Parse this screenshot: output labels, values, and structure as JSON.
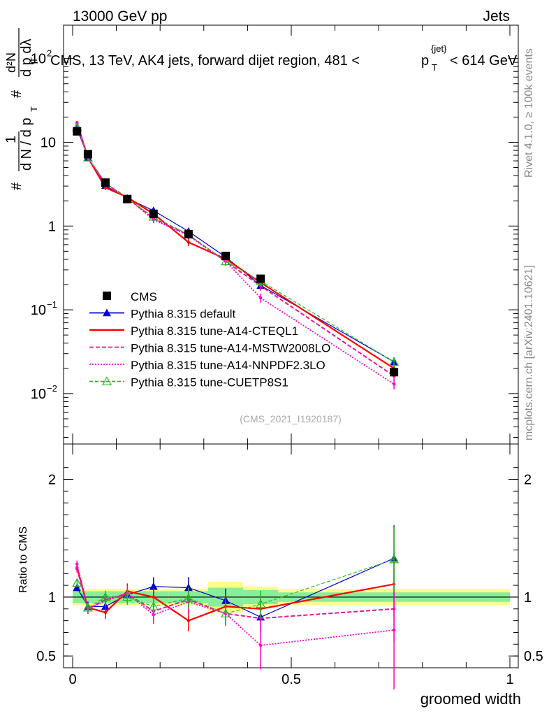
{
  "header": {
    "left": "13000 GeV pp",
    "right": "Jets",
    "title_main": "CMS, 13 TeV, AK4 jets, forward dijet region, 481 <",
    "title_pt_p": "p",
    "title_pt_sup": "{jet}",
    "title_pt_sub": "T",
    "title_end": "< 614 GeV"
  },
  "side_labels": {
    "rivet": "Rivet 4.1.0, ≥ 100k events",
    "mcplots": "mcplots.cern.ch [arXiv:2401.10621]"
  },
  "watermark": "(CMS_2021_I1920187)",
  "main_ylabel": {
    "hash1": "#",
    "one": "1",
    "dN_over_dp": "d N / d p",
    "T1": "T",
    "hash2": "#",
    "d2N": "d²N",
    "dp_dl": "d p  dλ",
    "T2": "T"
  },
  "main_yticks": [
    {
      "value": 100,
      "base": "10",
      "exp": "2"
    },
    {
      "value": 10,
      "base": "10",
      "exp": ""
    },
    {
      "value": 1,
      "base": "1",
      "exp": ""
    },
    {
      "value": 0.1,
      "base": "10",
      "exp": "−1"
    },
    {
      "value": 0.01,
      "base": "10",
      "exp": "−2"
    }
  ],
  "ratio_yticks": [
    {
      "value": 2,
      "label": "2"
    },
    {
      "value": 1,
      "label": "1"
    },
    {
      "value": 0.5,
      "label": "0.5"
    }
  ],
  "ratio_ylabel": "Ratio to CMS",
  "xticks": [
    {
      "value": 0,
      "label": "0"
    },
    {
      "value": 0.5,
      "label": "0.5"
    },
    {
      "value": 1,
      "label": "1"
    }
  ],
  "xlabel": "groomed width",
  "legend": [
    {
      "name": "CMS",
      "color": "#000000",
      "marker": "square",
      "dash": ""
    },
    {
      "name": "Pythia 8.315 default",
      "color": "#0000cc",
      "marker": "triangle",
      "dash": ""
    },
    {
      "name": "Pythia 8.315 tune-A14-CTEQL1",
      "color": "#ff0000",
      "marker": "none",
      "dash": ""
    },
    {
      "name": "Pythia 8.315 tune-A14-MSTW2008LO",
      "color": "#ee1493",
      "marker": "none",
      "dash": "6,3"
    },
    {
      "name": "Pythia 8.315 tune-A14-NNPDF2.3LO",
      "color": "#ff00cc",
      "marker": "none",
      "dash": "2,2"
    },
    {
      "name": "Pythia 8.315 tune-CUETP8S1",
      "color": "#22bb22",
      "marker": "open-triangle",
      "dash": "5,3"
    }
  ],
  "chart_data": {
    "type": "line",
    "title": "CMS, 13 TeV, AK4 jets, forward dijet region, 481 < p_T^{jet} < 614 GeV",
    "xlabel": "groomed width",
    "ylabel": "1/dN/dp_T d^2N/dp_T dlambda",
    "xlim": [
      0,
      1
    ],
    "ylim": [
      0.0025,
      250
    ],
    "yscale": "log",
    "ratio_ylim": [
      0.4,
      2.3
    ],
    "ratio_ylabel": "Ratio to CMS",
    "x": [
      0.01,
      0.035,
      0.075,
      0.125,
      0.185,
      0.265,
      0.35,
      0.43,
      0.735
    ],
    "bin_edges": [
      0,
      0.02,
      0.05,
      0.1,
      0.15,
      0.22,
      0.31,
      0.39,
      0.47,
      1.0
    ],
    "cms": [
      13.5,
      7.2,
      3.3,
      2.1,
      1.4,
      0.8,
      0.44,
      0.235,
      0.018
    ],
    "series": [
      {
        "name": "Pythia 8.315 default",
        "ratio": [
          1.08,
          0.92,
          0.92,
          1.02,
          1.09,
          1.08,
          0.97,
          0.83,
          1.33
        ]
      },
      {
        "name": "Pythia 8.315 tune-A14-CTEQL1",
        "ratio": [
          1.25,
          0.91,
          0.87,
          1.05,
          1.0,
          0.8,
          0.92,
          0.9,
          1.11
        ]
      },
      {
        "name": "Pythia 8.315 tune-A14-MSTW2008LO",
        "ratio": [
          1.24,
          0.9,
          0.98,
          1.03,
          0.88,
          0.98,
          0.86,
          0.82,
          0.9
        ]
      },
      {
        "name": "Pythia 8.315 tune-A14-NNPDF2.3LO",
        "ratio": [
          1.28,
          0.9,
          0.97,
          1.03,
          0.85,
          0.96,
          0.86,
          0.59,
          0.72
        ]
      },
      {
        "name": "Pythia 8.315 tune-CUETP8S1",
        "ratio": [
          1.12,
          0.91,
          1.0,
          1.0,
          0.92,
          0.99,
          0.86,
          0.94,
          1.32
        ]
      }
    ],
    "ratio_bands": {
      "inner": [
        0.05,
        0.05,
        0.05,
        0.05,
        0.05,
        0.05,
        0.08,
        0.06,
        0.04
      ],
      "outer": [
        0.07,
        0.07,
        0.07,
        0.07,
        0.07,
        0.07,
        0.13,
        0.09,
        0.07
      ]
    }
  }
}
